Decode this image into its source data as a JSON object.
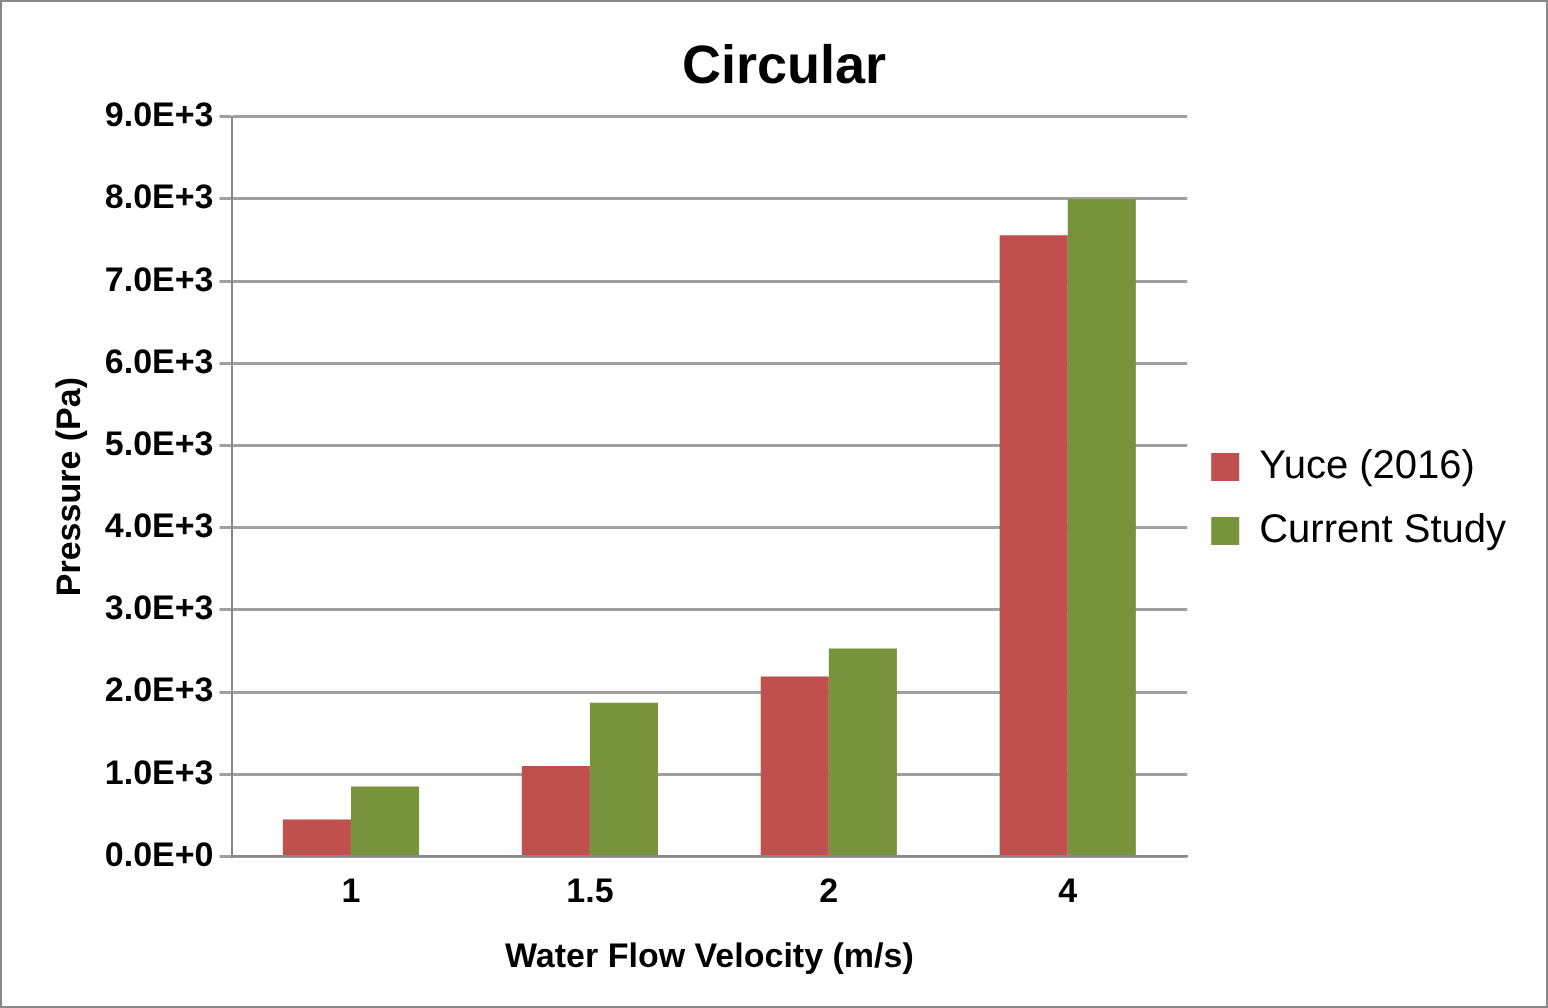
{
  "chart_data": {
    "type": "bar",
    "title": "Circular",
    "xlabel": "Water Flow Velocity (m/s)",
    "ylabel": "Pressure (Pa)",
    "categories": [
      "1",
      "1.5",
      "2",
      "4"
    ],
    "series": [
      {
        "name": "Yuce (2016)",
        "color": "#c0504d",
        "values": [
          450,
          1100,
          2190,
          7560
        ]
      },
      {
        "name": "Current Study",
        "color": "#77933c",
        "values": [
          850,
          1870,
          2530,
          8000
        ]
      }
    ],
    "ylim": [
      0,
      9000
    ],
    "yticks": [
      {
        "value": 0,
        "label": "0.0E+0"
      },
      {
        "value": 1000,
        "label": "1.0E+3"
      },
      {
        "value": 2000,
        "label": "2.0E+3"
      },
      {
        "value": 3000,
        "label": "3.0E+3"
      },
      {
        "value": 4000,
        "label": "4.0E+3"
      },
      {
        "value": 5000,
        "label": "5.0E+3"
      },
      {
        "value": 6000,
        "label": "6.0E+3"
      },
      {
        "value": 7000,
        "label": "7.0E+3"
      },
      {
        "value": 8000,
        "label": "8.0E+3"
      },
      {
        "value": 9000,
        "label": "9.0E+3"
      }
    ],
    "grid": "y",
    "legend": "right"
  }
}
